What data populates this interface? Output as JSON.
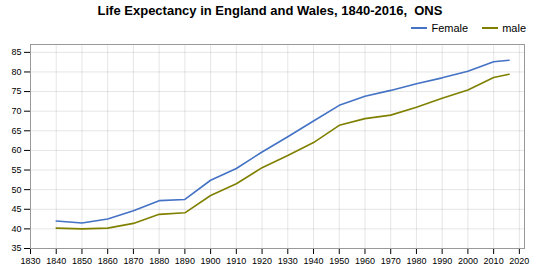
{
  "chart_data": {
    "type": "line",
    "title": "Life Expectancy in England and Wales, 1840-2016,  ONS",
    "x": [
      1840,
      1850,
      1860,
      1870,
      1880,
      1890,
      1900,
      1910,
      1920,
      1930,
      1940,
      1950,
      1960,
      1970,
      1980,
      1990,
      2000,
      2010,
      2016
    ],
    "series": [
      {
        "name": "Female",
        "color": "#4472C4",
        "values": [
          42.0,
          41.5,
          42.5,
          44.6,
          47.2,
          47.5,
          52.4,
          55.4,
          59.6,
          63.5,
          67.5,
          71.5,
          73.8,
          75.3,
          77.0,
          78.5,
          80.2,
          82.6,
          83.0
        ]
      },
      {
        "name": "male",
        "color": "#808000",
        "values": [
          40.2,
          40.0,
          40.2,
          41.4,
          43.7,
          44.1,
          48.5,
          51.5,
          55.6,
          58.7,
          62.0,
          66.4,
          68.1,
          69.0,
          71.0,
          73.3,
          75.4,
          78.6,
          79.4
        ]
      }
    ],
    "xlim": [
      1830,
      2022
    ],
    "xticks": [
      1830,
      1840,
      1850,
      1860,
      1870,
      1880,
      1890,
      1900,
      1910,
      1920,
      1930,
      1940,
      1950,
      1960,
      1970,
      1980,
      1990,
      2000,
      2010,
      2020
    ],
    "ylim": [
      35,
      87
    ],
    "yticks": [
      35,
      40,
      45,
      50,
      55,
      60,
      65,
      70,
      75,
      80,
      85
    ],
    "grid": true,
    "legend": "upper right"
  }
}
